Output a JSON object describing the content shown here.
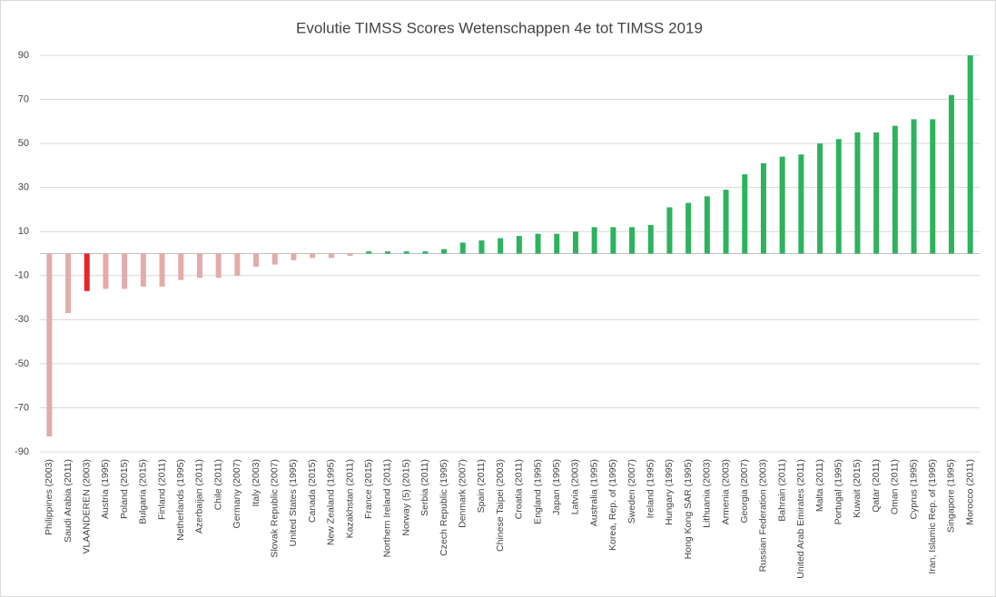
{
  "chart_data": {
    "type": "bar",
    "title": "Evolutie TIMSS Scores Wetenschappen 4e tot TIMSS 2019",
    "categories": [
      "Philippines (2003)",
      "Saudi Arabia (2011)",
      "VLAANDEREN (2003)",
      "Austria (1995)",
      "Poland (2015)",
      "Bulgaria (2015)",
      "Finland (2011)",
      "Netherlands (1995)",
      "Azerbaijan (2011)",
      "Chile (2011)",
      "Germany (2007)",
      "Italy (2003)",
      "Slovak Republic (2007)",
      "United States (1995)",
      "Canada (2015)",
      "New Zealand (1995)",
      "Kazakhstan (2011)",
      "France (2015)",
      "Northern Ireland (2011)",
      "Norway (5) (2015)",
      "Serbia (2011)",
      "Czech Republic (1995)",
      "Denmark (2007)",
      "Spain (2011)",
      "Chinese Taipei (2003)",
      "Croatia (2011)",
      "England (1995)",
      "Japan (1995)",
      "Latvia (2003)",
      "Australia (1995)",
      "Korea, Rep. of (1995)",
      "Sweden (2007)",
      "Ireland (1995)",
      "Hungary (1995)",
      "Hong Kong SAR (1995)",
      "Lithuania (2003)",
      "Armenia (2003)",
      "Georgia (2007)",
      "Russian Federation (2003)",
      "Bahrain (2011)",
      "United Arab Emirates (2011)",
      "Malta (2011)",
      "Portugal (1995)",
      "Kuwait (2015)",
      "Qatar (2011)",
      "Oman (2011)",
      "Cyprus (1995)",
      "Iran, Islamic Rep. of (1995)",
      "Singapore (1995)",
      "Morocco (2011)"
    ],
    "values": [
      -83,
      -27,
      -17,
      -16,
      -16,
      -15,
      -15,
      -12,
      -11,
      -11,
      -10,
      -6,
      -5,
      -3,
      -2,
      -2,
      -1,
      1,
      1,
      1,
      1,
      2,
      5,
      6,
      7,
      8,
      9,
      9,
      10,
      12,
      12,
      12,
      13,
      21,
      23,
      26,
      29,
      36,
      41,
      44,
      45,
      50,
      52,
      55,
      55,
      58,
      61,
      61,
      72,
      90
    ],
    "colors": [
      "#e3abab",
      "#e3abab",
      "#e5262b",
      "#e3abab",
      "#e3abab",
      "#e3abab",
      "#e3abab",
      "#e3abab",
      "#e3abab",
      "#e3abab",
      "#e3abab",
      "#e3abab",
      "#e3abab",
      "#e3abab",
      "#e3abab",
      "#e3abab",
      "#e3abab",
      "#2db35d",
      "#2db35d",
      "#2db35d",
      "#2db35d",
      "#2db35d",
      "#2db35d",
      "#2db35d",
      "#2db35d",
      "#2db35d",
      "#2db35d",
      "#2db35d",
      "#2db35d",
      "#2db35d",
      "#2db35d",
      "#2db35d",
      "#2db35d",
      "#2db35d",
      "#2db35d",
      "#2db35d",
      "#2db35d",
      "#2db35d",
      "#2db35d",
      "#2db35d",
      "#2db35d",
      "#2db35d",
      "#2db35d",
      "#2db35d",
      "#2db35d",
      "#2db35d",
      "#2db35d",
      "#2db35d",
      "#2db35d",
      "#2db35d"
    ],
    "ylim": [
      -90,
      90
    ],
    "yticks": [
      90,
      70,
      50,
      30,
      10,
      -10,
      -30,
      -50,
      -70,
      -90
    ],
    "grid": true
  }
}
